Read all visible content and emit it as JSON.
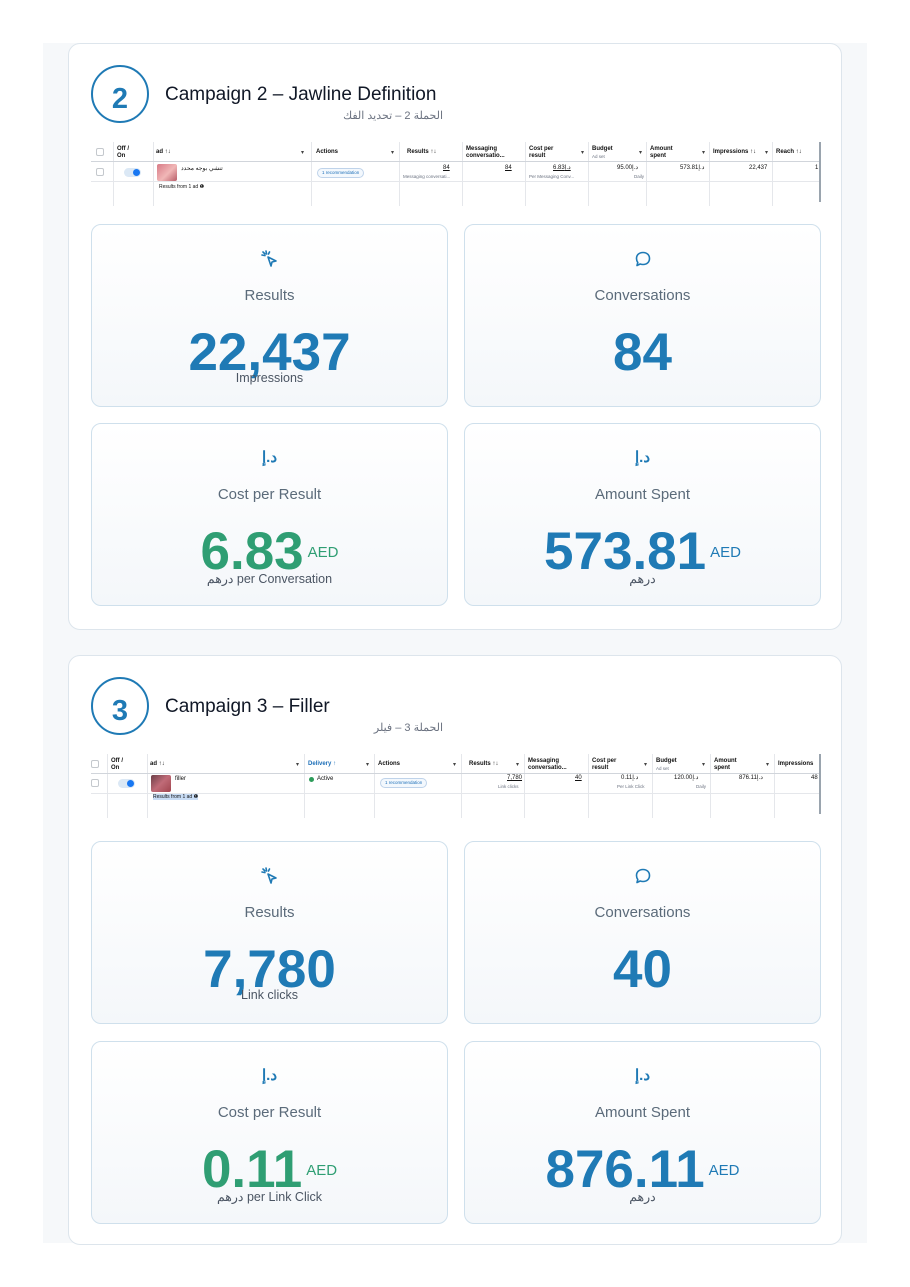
{
  "campaigns": [
    {
      "number": "2",
      "title": "Campaign 2 – Jawline Definition",
      "subtitle": "الحملة 2 – تحديد الفك",
      "table": {
        "headers": {
          "offon": "Off / On",
          "ad": "ad ↑↓",
          "actions": "Actions",
          "results": "Results ↑↓",
          "messaging": "Messaging conversatio...",
          "cost": "Cost per result",
          "budget": "Budget",
          "budget_sub": "Ad set",
          "amount": "Amount spent",
          "impressions": "Impressions ↑↓",
          "reach": "Reach ↑↓"
        },
        "row": {
          "ad_name": "تنشي بوجه محدد",
          "recommendation": "1 recommendation",
          "results": "84",
          "results_sub": "Messaging conversati...",
          "messaging": "84",
          "cost": "6.83د.إ",
          "cost_sub": "Per Messaging Conv...",
          "budget": "95.00د.إ",
          "budget_sub": "Daily",
          "amount": "573.81د.إ",
          "impressions": "22,437",
          "reach": "1"
        },
        "results_from": "Results from 1 ad ❶"
      },
      "tiles": {
        "results": {
          "icon": "cursor-click-icon",
          "label": "Results",
          "value": "22,437",
          "sub": "Impressions"
        },
        "conversations": {
          "icon": "chat-bubble-icon",
          "label": "Conversations",
          "value": "84"
        },
        "cost": {
          "icon_text": "د.إ",
          "label": "Cost per Result",
          "value": "6.83",
          "unit": "AED",
          "sub": "درهم per Conversation"
        },
        "amount": {
          "icon_text": "د.إ",
          "label": "Amount Spent",
          "value": "573.81",
          "unit": "AED",
          "sub": "درهم"
        }
      }
    },
    {
      "number": "3",
      "title": "Campaign 3 – Filler",
      "subtitle": "الحملة 3 – فيلر",
      "table": {
        "headers": {
          "offon": "Off / On",
          "ad": "ad ↑↓",
          "delivery": "Delivery ↑",
          "actions": "Actions",
          "results": "Results ↑↓",
          "messaging": "Messaging conversatio...",
          "cost": "Cost per result",
          "budget": "Budget",
          "budget_sub": "Ad set",
          "amount": "Amount spent",
          "impressions": "Impressions"
        },
        "row": {
          "ad_name": "filler",
          "delivery": "Active",
          "recommendation": "1 recommendation",
          "results": "7,780",
          "results_sub": "Link clicks",
          "messaging": "40",
          "cost": "0.11د.إ",
          "cost_sub": "Per Link Click",
          "budget": "120.00د.إ",
          "budget_sub": "Daily",
          "amount": "876.11د.إ",
          "impressions": "48"
        },
        "results_from": "Results from 1 ad ❶"
      },
      "tiles": {
        "results": {
          "icon": "cursor-click-icon",
          "label": "Results",
          "value": "7,780",
          "sub": "Link clicks"
        },
        "conversations": {
          "icon": "chat-bubble-icon",
          "label": "Conversations",
          "value": "40"
        },
        "cost": {
          "icon_text": "د.إ",
          "label": "Cost per Result",
          "value": "0.11",
          "unit": "AED",
          "sub": "درهم per Link Click"
        },
        "amount": {
          "icon_text": "د.إ",
          "label": "Amount Spent",
          "value": "876.11",
          "unit": "AED",
          "sub": "درهم"
        }
      }
    }
  ],
  "colors": {
    "accent_blue": "#1f7ab5",
    "accent_green": "#2f9e73",
    "label_gray": "#5b6b7a"
  }
}
